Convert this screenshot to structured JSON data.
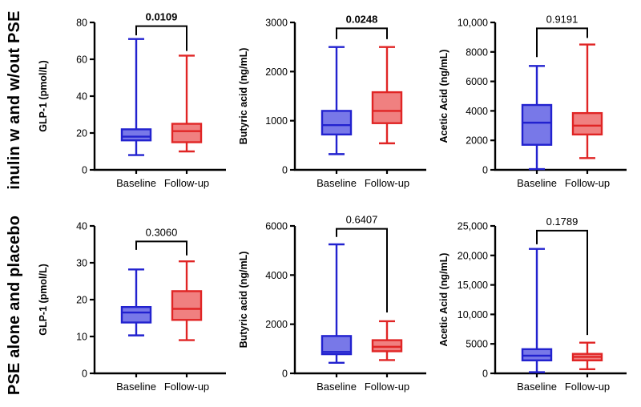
{
  "figure": {
    "row_labels": [
      {
        "label": "inulin w and w/out PSE"
      },
      {
        "label": "PSE alone and placebo"
      }
    ],
    "colors": {
      "baseline_stroke": "#2222cf",
      "baseline_fill": "#7878e8",
      "followup_stroke": "#e02525",
      "followup_fill": "#f08080",
      "axis": "#000000",
      "background": "#ffffff"
    }
  },
  "chart_data": [
    {
      "type": "box",
      "row": 0,
      "col": 0,
      "title": "",
      "xlabel": "",
      "ylabel": "GLP-1 (pmol/L)",
      "ylim": [
        0,
        80
      ],
      "yticks": [
        0,
        20,
        40,
        60,
        80
      ],
      "ytick_labels": [
        "0",
        "20",
        "40",
        "60",
        "80"
      ],
      "categories": [
        "Baseline",
        "Follow-up"
      ],
      "series": [
        {
          "name": "Baseline",
          "min": 8,
          "q1": 16,
          "median": 18,
          "q3": 22,
          "max": 71
        },
        {
          "name": "Follow-up",
          "min": 10,
          "q1": 15,
          "median": 21,
          "q3": 25,
          "max": 62
        }
      ],
      "p_value": "0.0109",
      "p_bold": true,
      "bracket": {
        "top": 78,
        "left_end": 73,
        "right_end": 64.5
      }
    },
    {
      "type": "box",
      "row": 0,
      "col": 1,
      "title": "",
      "xlabel": "",
      "ylabel": "Butyric acid (ng/mL)",
      "ylim": [
        0,
        3000
      ],
      "yticks": [
        0,
        1000,
        2000,
        3000
      ],
      "ytick_labels": [
        "0",
        "1000",
        "2000",
        "3000"
      ],
      "categories": [
        "Baseline",
        "Follow-up"
      ],
      "series": [
        {
          "name": "Baseline",
          "min": 320,
          "q1": 720,
          "median": 910,
          "q3": 1200,
          "max": 2500
        },
        {
          "name": "Follow-up",
          "min": 540,
          "q1": 950,
          "median": 1200,
          "q3": 1580,
          "max": 2500
        }
      ],
      "p_value": "0.0248",
      "p_bold": true,
      "bracket": {
        "top": 2880,
        "left_end": 2660,
        "right_end": 2660
      }
    },
    {
      "type": "box",
      "row": 0,
      "col": 2,
      "title": "",
      "xlabel": "",
      "ylabel": "Acetic Acid (ng/mL)",
      "ylim": [
        0,
        10000
      ],
      "yticks": [
        0,
        2000,
        4000,
        6000,
        8000,
        10000
      ],
      "ytick_labels": [
        "0",
        "2000",
        "4000",
        "6000",
        "8000",
        "10,000"
      ],
      "categories": [
        "Baseline",
        "Follow-up"
      ],
      "series": [
        {
          "name": "Baseline",
          "min": 50,
          "q1": 1700,
          "median": 3200,
          "q3": 4400,
          "max": 7050
        },
        {
          "name": "Follow-up",
          "min": 800,
          "q1": 2400,
          "median": 3000,
          "q3": 3850,
          "max": 8500
        }
      ],
      "p_value": "0.9191",
      "p_bold": false,
      "bracket": {
        "top": 9600,
        "left_end": 7650,
        "right_end": 8950
      }
    },
    {
      "type": "box",
      "row": 1,
      "col": 0,
      "title": "",
      "xlabel": "",
      "ylabel": "GLP-1 (pmol/L)",
      "ylim": [
        0,
        40
      ],
      "yticks": [
        0,
        10,
        20,
        30,
        40
      ],
      "ytick_labels": [
        "0",
        "10",
        "20",
        "30",
        "40"
      ],
      "categories": [
        "Baseline",
        "Follow-up"
      ],
      "series": [
        {
          "name": "Baseline",
          "min": 10.3,
          "q1": 13.8,
          "median": 16.5,
          "q3": 18,
          "max": 28.2
        },
        {
          "name": "Follow-up",
          "min": 9,
          "q1": 14.5,
          "median": 17.5,
          "q3": 22.3,
          "max": 30.4
        }
      ],
      "p_value": "0.3060",
      "p_bold": false,
      "bracket": {
        "top": 35.8,
        "left_end": 33.5,
        "right_end": 32
      }
    },
    {
      "type": "box",
      "row": 1,
      "col": 1,
      "title": "",
      "xlabel": "",
      "ylabel": "Butyric acid (ng/mL)",
      "ylim": [
        0,
        6000
      ],
      "yticks": [
        0,
        2000,
        4000,
        6000
      ],
      "ytick_labels": [
        "0",
        "2000",
        "4000",
        "6000"
      ],
      "categories": [
        "Baseline",
        "Follow-up"
      ],
      "series": [
        {
          "name": "Baseline",
          "min": 430,
          "q1": 780,
          "median": 870,
          "q3": 1520,
          "max": 5250
        },
        {
          "name": "Follow-up",
          "min": 540,
          "q1": 900,
          "median": 1080,
          "q3": 1350,
          "max": 2120
        }
      ],
      "p_value": "0.6407",
      "p_bold": false,
      "bracket": {
        "top": 5880,
        "left_end": 5550,
        "right_end": 2480
      }
    },
    {
      "type": "box",
      "row": 1,
      "col": 2,
      "title": "",
      "xlabel": "",
      "ylabel": "Acetic Acid (ng/mL)",
      "ylim": [
        0,
        25000
      ],
      "yticks": [
        0,
        5000,
        10000,
        15000,
        20000,
        25000
      ],
      "ytick_labels": [
        "0",
        "5000",
        "10,000",
        "15,000",
        "20,000",
        "25,000"
      ],
      "categories": [
        "Baseline",
        "Follow-up"
      ],
      "series": [
        {
          "name": "Baseline",
          "min": 200,
          "q1": 2200,
          "median": 3000,
          "q3": 4100,
          "max": 21100
        },
        {
          "name": "Follow-up",
          "min": 700,
          "q1": 2200,
          "median": 2800,
          "q3": 3300,
          "max": 5200
        }
      ],
      "p_value": "0.1789",
      "p_bold": false,
      "bracket": {
        "top": 24200,
        "left_end": 21900,
        "right_end": 6500
      }
    }
  ]
}
